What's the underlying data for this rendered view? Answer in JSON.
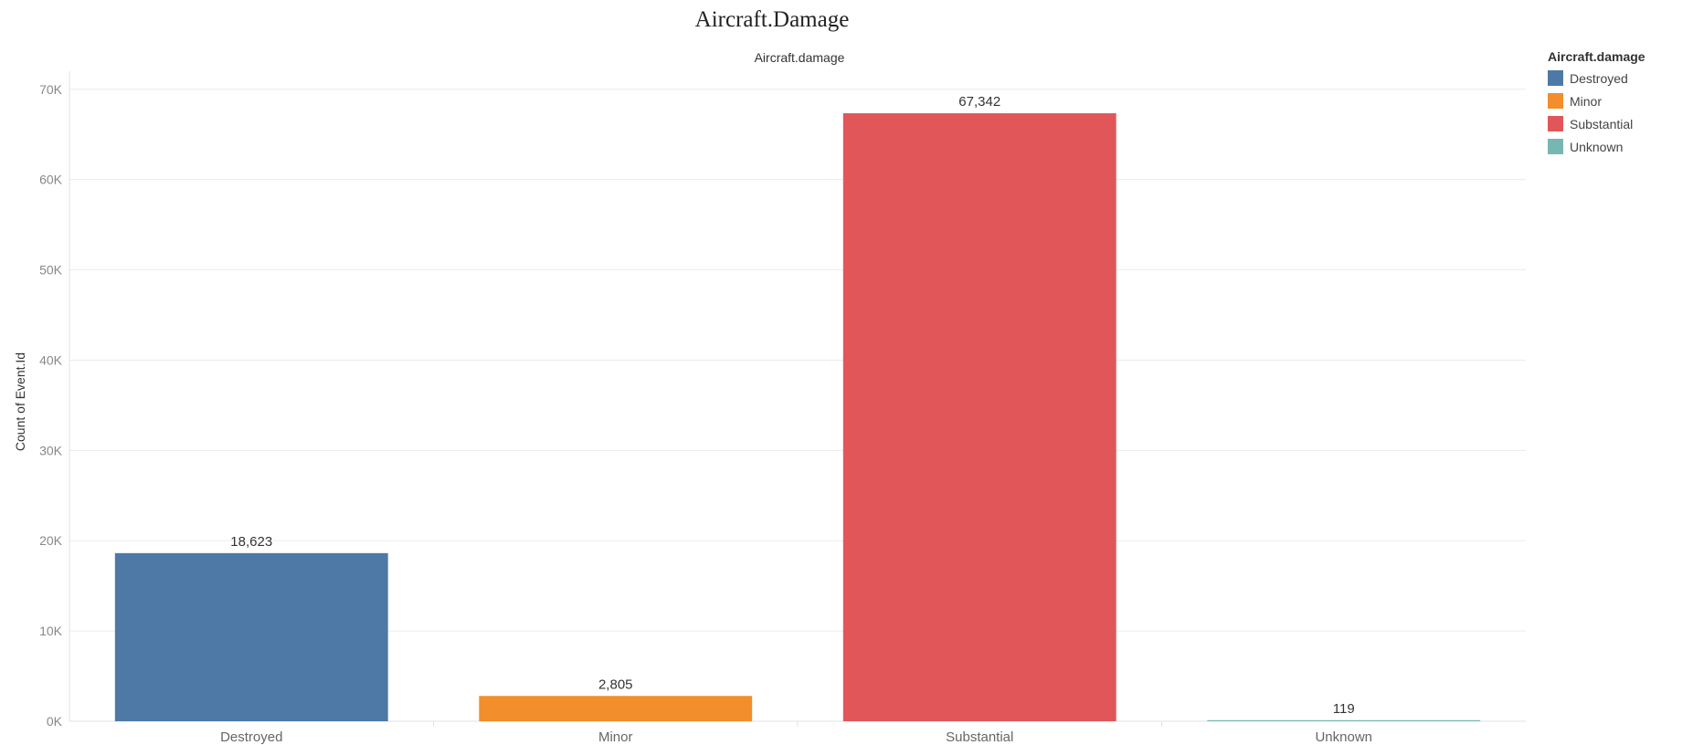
{
  "title": "Aircraft.Damage",
  "column_header": "Aircraft.damage",
  "y_axis_label": "Count of Event.Id",
  "legend": {
    "title": "Aircraft.damage",
    "items": [
      {
        "label": "Destroyed",
        "color": "#4e79a7"
      },
      {
        "label": "Minor",
        "color": "#f28e2b"
      },
      {
        "label": "Substantial",
        "color": "#e15759"
      },
      {
        "label": "Unknown",
        "color": "#76b7b2"
      }
    ]
  },
  "chart_data": {
    "type": "bar",
    "title": "Aircraft.Damage",
    "xlabel": "Aircraft.damage",
    "ylabel": "Count of Event.Id",
    "categories": [
      "Destroyed",
      "Minor",
      "Substantial",
      "Unknown"
    ],
    "values": [
      18623,
      2805,
      67342,
      119
    ],
    "value_labels": [
      "18,623",
      "2,805",
      "67,342",
      "119"
    ],
    "colors": [
      "#4e79a7",
      "#f28e2b",
      "#e15759",
      "#76b7b2"
    ],
    "ylim": [
      0,
      72000
    ],
    "yticks": [
      0,
      10000,
      20000,
      30000,
      40000,
      50000,
      60000,
      70000
    ],
    "ytick_labels": [
      "0K",
      "10K",
      "20K",
      "30K",
      "40K",
      "50K",
      "60K",
      "70K"
    ],
    "grid": true,
    "legend_position": "top-right"
  }
}
